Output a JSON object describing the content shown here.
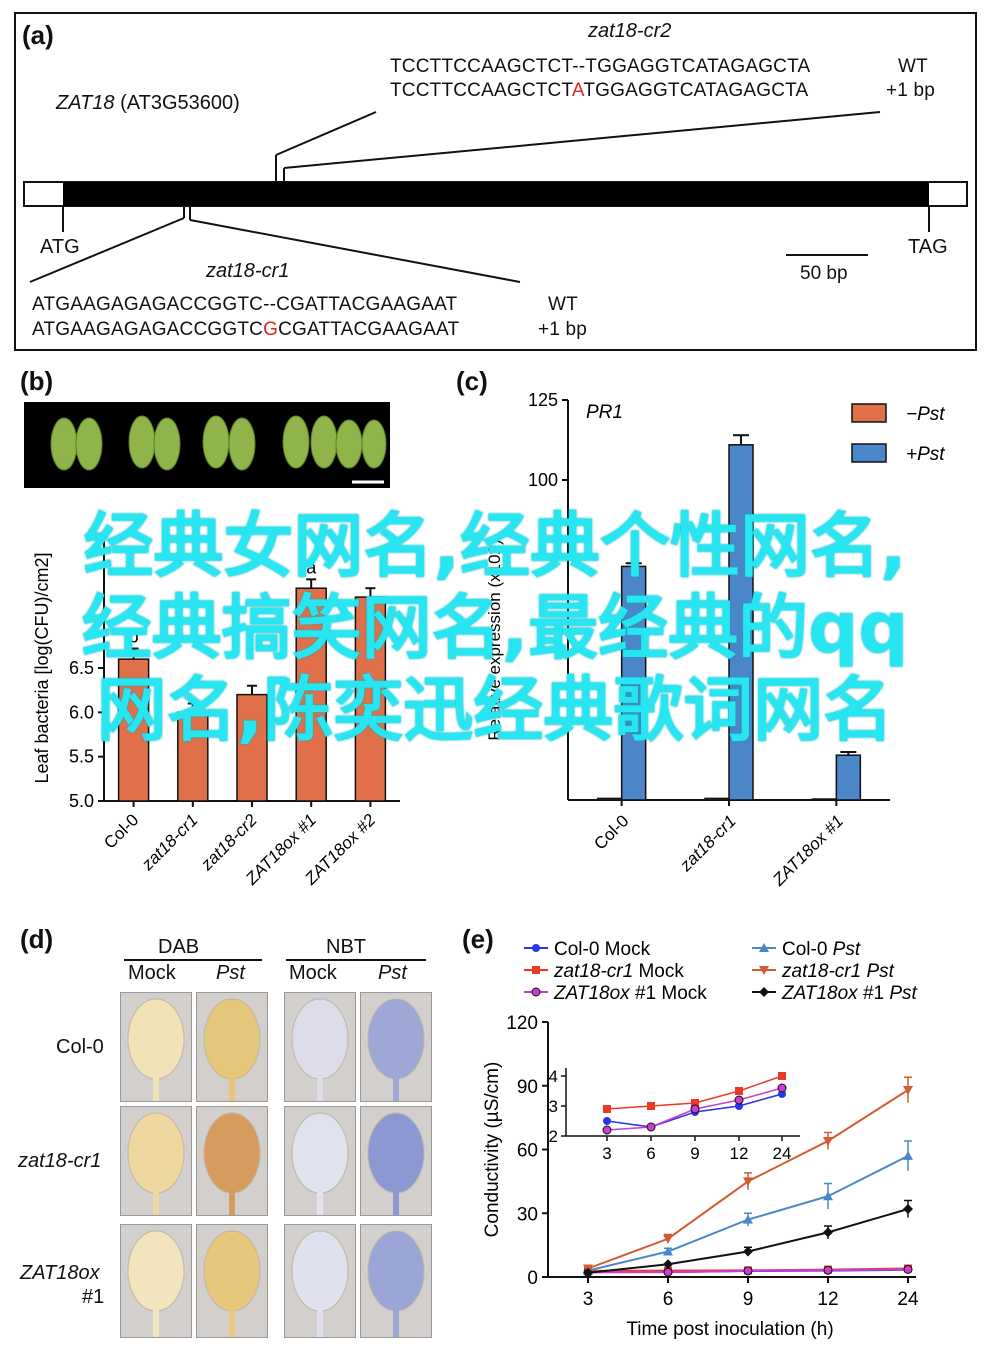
{
  "panel_a": {
    "label": "(a)",
    "gene": "ZAT18",
    "gene_id": "(AT3G53600)",
    "start_codon": "ATG",
    "stop_codon": "TAG",
    "scale_bar": "50 bp",
    "cr2": {
      "name": "zat18-cr2",
      "wt_seq": "TCCTTCCAAGCTCT--TGGAGGTCATAGAGCTA",
      "wt_label": "WT",
      "mut_seq_pre": "TCCTTCCAAGCTCT",
      "mut_insert": "A",
      "mut_seq_post": "TGGAGGTCATAGAGCTA",
      "mut_label": "+1 bp"
    },
    "cr1": {
      "name": "zat18-cr1",
      "wt_seq": "ATGAAGAGAGACCGGTC--CGATTACGAAGAAT",
      "wt_label": "WT",
      "mut_seq_pre": "ATGAAGAGAGACCGGTC",
      "mut_insert": "G",
      "mut_seq_post": "CGATTACGAAGAAT",
      "mut_label": "+1 bp"
    }
  },
  "panel_b": {
    "label": "(b)",
    "chart_data": {
      "type": "bar",
      "categories": [
        "Col-0",
        "zat18-cr1",
        "zat18-cr2",
        "ZAT18ox #1",
        "ZAT18ox #2"
      ],
      "values": [
        6.6,
        6.0,
        6.2,
        7.4,
        7.3
      ],
      "errors": [
        0.12,
        0.1,
        0.1,
        0.1,
        0.1
      ],
      "letters": [
        "b",
        "",
        "",
        "a",
        ""
      ],
      "ylabel": "Leaf bacteria [log(CFU)/cm2]",
      "ylim": [
        5.0,
        8.0
      ],
      "yticks": [
        "5.0",
        "5.5",
        "6.0",
        "6.5"
      ],
      "color": "#e0704a"
    }
  },
  "panel_c": {
    "label": "(c)",
    "chart_data": {
      "type": "bar",
      "title": "PR1",
      "ylabel": "Relative expression (x102)",
      "categories": [
        "Col-0",
        "zat18-cr1",
        "ZAT18ox #1"
      ],
      "series": [
        {
          "name": "−Pst",
          "color": "#e0704a",
          "values": [
            0.5,
            0.5,
            0.3
          ]
        },
        {
          "name": "+Pst",
          "color": "#4a86c8",
          "values": [
            73,
            111,
            14
          ]
        }
      ],
      "errors": [
        1,
        3,
        1
      ],
      "ylim": [
        0,
        125
      ],
      "yticks": [
        "100",
        "125"
      ],
      "legend": "top-right"
    }
  },
  "panel_d": {
    "label": "(d)",
    "stains": [
      "DAB",
      "NBT"
    ],
    "treatments": [
      "Mock",
      "Pst",
      "Mock",
      "Pst"
    ],
    "rows": [
      "Col-0",
      "zat18-cr1",
      "ZAT18ox",
      "#1"
    ]
  },
  "panel_e": {
    "label": "(e)",
    "chart_data": {
      "type": "line",
      "x": [
        3,
        6,
        9,
        12,
        24
      ],
      "xlabel": "Time post inoculation (h)",
      "ylabel": "Conductivity (µS/cm)",
      "ylim": [
        0,
        120
      ],
      "yticks": [
        "0",
        "30",
        "60",
        "90",
        "120"
      ],
      "xticks": [
        "3",
        "6",
        "9",
        "12",
        "24"
      ],
      "legend": "top",
      "series": [
        {
          "name": "Col-0 Mock",
          "strain": "Col-0",
          "treat": "Mock",
          "color": "#2636e8",
          "marker": "circle",
          "values": [
            2.5,
            2.3,
            2.8,
            3.0,
            3.4
          ],
          "err": [
            0.3,
            0.3,
            0.3,
            0.3,
            0.3
          ]
        },
        {
          "name": "zat18-cr1 Mock",
          "strain": "zat18-cr1",
          "treat": "Mock",
          "color": "#e83a26",
          "marker": "square",
          "values": [
            2.9,
            3.0,
            3.1,
            3.5,
            4.0
          ],
          "err": [
            0.3,
            0.3,
            0.3,
            0.3,
            0.3
          ]
        },
        {
          "name": "ZAT18ox #1 Mock",
          "strain": "ZAT18ox",
          "strainSuffix": " #1",
          "treat": "Mock",
          "color": "#c93ed0",
          "marker": "circle-open",
          "values": [
            2.2,
            2.3,
            2.9,
            3.2,
            3.6
          ],
          "err": [
            0.3,
            0.3,
            0.3,
            0.3,
            0.3
          ]
        },
        {
          "name": "Col-0 Pst",
          "strain": "Col-0",
          "treat": "Pst",
          "color": "#4a86c8",
          "marker": "triangle-up",
          "values": [
            3,
            12,
            27,
            38,
            57
          ],
          "err": [
            0.5,
            1.5,
            3,
            6,
            7
          ]
        },
        {
          "name": "zat18-cr1 Pst",
          "strain": "zat18-cr1",
          "treat": "Pst",
          "color": "#d25b32",
          "marker": "triangle-down",
          "values": [
            4,
            18,
            45,
            64,
            88
          ],
          "err": [
            0.5,
            2,
            4,
            4,
            6
          ]
        },
        {
          "name": "ZAT18ox #1 Pst",
          "strain": "ZAT18ox",
          "strainSuffix": " #1",
          "treat": "Pst",
          "color": "#111111",
          "marker": "diamond",
          "values": [
            2,
            6,
            12,
            21,
            32
          ],
          "err": [
            0.3,
            1,
            2,
            3,
            4
          ]
        }
      ],
      "inset": {
        "ylim": [
          2,
          4
        ],
        "yticks": [
          "2",
          "3",
          "4"
        ],
        "xticks": [
          "3",
          "6",
          "9",
          "12",
          "24"
        ]
      }
    }
  },
  "overlay": {
    "text": "经典女网名,经典个性网名,经典搞笑网名,最经典的qq网名,陈奕迅经典歌词网名"
  }
}
